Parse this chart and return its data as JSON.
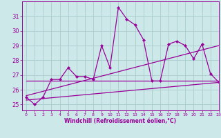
{
  "xlabel": "Windchill (Refroidissement éolien,°C)",
  "bg_color": "#cce8e8",
  "line_color": "#990099",
  "grid_color": "#aacccc",
  "spine_color": "#9966aa",
  "hours": [
    0,
    1,
    2,
    3,
    4,
    5,
    6,
    7,
    8,
    9,
    10,
    11,
    12,
    13,
    14,
    15,
    16,
    17,
    18,
    19,
    20,
    21,
    22,
    23
  ],
  "temp_values": [
    25.5,
    25.0,
    25.5,
    26.7,
    26.7,
    27.5,
    26.9,
    26.9,
    26.7,
    29.0,
    27.5,
    31.6,
    30.8,
    30.4,
    29.4,
    26.6,
    26.6,
    29.1,
    29.3,
    29.0,
    28.1,
    29.1,
    27.1,
    26.5
  ],
  "trend1_x": [
    0,
    23
  ],
  "trend1_y": [
    25.3,
    26.5
  ],
  "trend2_x": [
    0,
    23
  ],
  "trend2_y": [
    25.6,
    29.0
  ],
  "trend3_x": [
    0,
    23
  ],
  "trend3_y": [
    26.6,
    26.6
  ],
  "yticks": [
    25,
    26,
    27,
    28,
    29,
    30,
    31
  ],
  "ylim": [
    24.6,
    32.0
  ],
  "xlim": [
    -0.5,
    23.0
  ]
}
